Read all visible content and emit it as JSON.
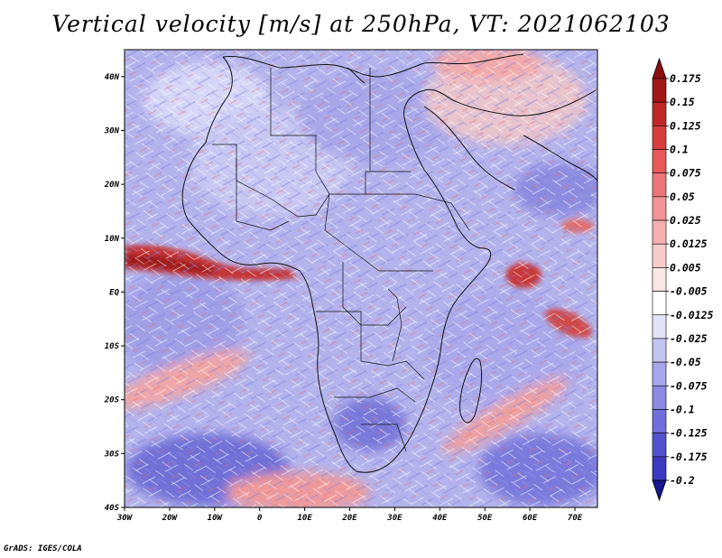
{
  "title": "Vertical velocity [m/s] at 250hPa, VT: 2021062103",
  "credit": "GrADS: IGES/COLA",
  "map": {
    "projection": "latlon",
    "lon_range": [
      -30,
      75
    ],
    "lat_range": [
      -40,
      45
    ],
    "lat_labels": [
      {
        "lat": 40,
        "label": "40N"
      },
      {
        "lat": 30,
        "label": "30N"
      },
      {
        "lat": 20,
        "label": "20N"
      },
      {
        "lat": 10,
        "label": "10N"
      },
      {
        "lat": 0,
        "label": "EQ"
      },
      {
        "lat": -10,
        "label": "10S"
      },
      {
        "lat": -20,
        "label": "20S"
      },
      {
        "lat": -30,
        "label": "30S"
      },
      {
        "lat": -40,
        "label": "40S"
      }
    ],
    "lon_labels": [
      {
        "lon": -30,
        "label": "30W"
      },
      {
        "lon": -20,
        "label": "20W"
      },
      {
        "lon": -10,
        "label": "10W"
      },
      {
        "lon": 0,
        "label": "0"
      },
      {
        "lon": 10,
        "label": "10E"
      },
      {
        "lon": 20,
        "label": "20E"
      },
      {
        "lon": 30,
        "label": "30E"
      },
      {
        "lon": 40,
        "label": "40E"
      },
      {
        "lon": 50,
        "label": "50E"
      },
      {
        "lon": 60,
        "label": "60E"
      },
      {
        "lon": 70,
        "label": "70E"
      }
    ]
  },
  "colorbar": {
    "levels": [
      {
        "label": "0.175",
        "color": "#a01818"
      },
      {
        "label": "0.15",
        "color": "#c02828"
      },
      {
        "label": "0.125",
        "color": "#d83e3e"
      },
      {
        "label": "0.1",
        "color": "#e85858"
      },
      {
        "label": "0.075",
        "color": "#ee7676"
      },
      {
        "label": "0.05",
        "color": "#f29494"
      },
      {
        "label": "0.025",
        "color": "#f6b0b0"
      },
      {
        "label": "0.0125",
        "color": "#f9cccc"
      },
      {
        "label": "0.005",
        "color": "#fce6e6"
      },
      {
        "label": "-0.005",
        "color": "#ffffff"
      },
      {
        "label": "-0.0125",
        "color": "#e2e2f8"
      },
      {
        "label": "-0.025",
        "color": "#c4c4f2"
      },
      {
        "label": "-0.05",
        "color": "#a6a6ec"
      },
      {
        "label": "-0.075",
        "color": "#8a8ae4"
      },
      {
        "label": "-0.1",
        "color": "#6e6edc"
      },
      {
        "label": "-0.125",
        "color": "#5252d0"
      },
      {
        "label": "-0.175",
        "color": "#3a3ac0"
      },
      {
        "label": "-0.2",
        "color": "#2828aa"
      }
    ],
    "top_arrow_color": "#8a0e0e",
    "bottom_arrow_color": "#16168e"
  }
}
